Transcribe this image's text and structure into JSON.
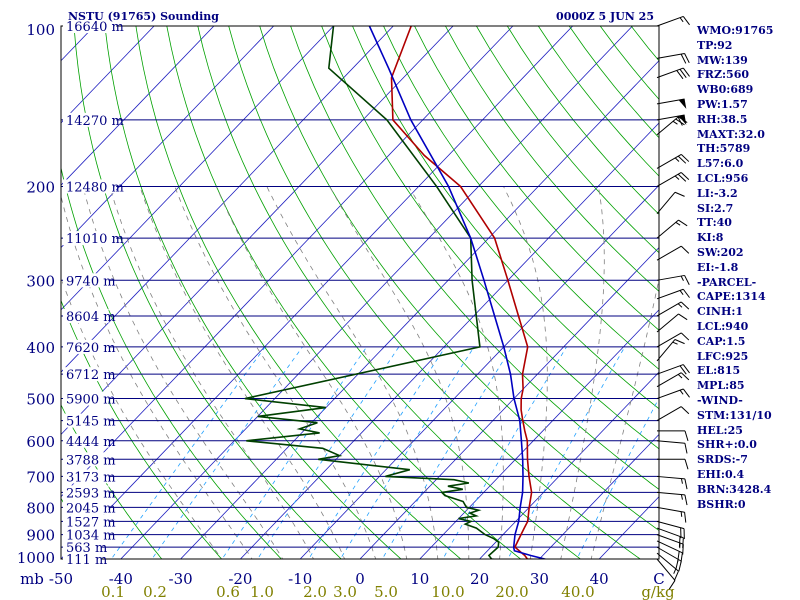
{
  "header": {
    "station_title": "NSTU (91765) Sounding",
    "valid_time": "0000Z  5 JUN 25"
  },
  "indices": [
    "WMO:91765",
    "TP:92",
    "MW:139",
    "FRZ:560",
    "WB0:689",
    "PW:1.57",
    "RH:38.5",
    "MAXT:32.0",
    "TH:5789",
    "L57:6.0",
    "LCL:956",
    "LI:-3.2",
    "SI:2.7",
    "TT:40",
    "KI:8",
    "SW:202",
    "EI:-1.8",
    "-PARCEL-",
    "CAPE:1314",
    "CINH:1",
    "LCL:940",
    "CAP:1.5",
    "LFC:925",
    "EL:815",
    "MPL:85",
    "-WIND-",
    "STM:131/10",
    "HEL:25",
    "SHR+:0.0",
    "SRDS:-7",
    "EHI:0.4",
    "BRN:3428.4",
    "BSHR:0"
  ],
  "colors": {
    "isobar": "#000080",
    "skewed_isotherm": "#2020c0",
    "dry_adiabat": "#00a000",
    "moist_adiabat": "#808080",
    "mixing_ratio": "#20a0ff",
    "temperature": "#b00000",
    "dewpoint": "#004000",
    "parcel": "#0000c0",
    "label_text": "#000080",
    "mixing_ratio_label": "#808000",
    "wind_barb": "#000000"
  },
  "chart_data": {
    "type": "line",
    "chart_kind": "skew-T log-P sounding",
    "y_axis": {
      "scale": "log",
      "unit": "hPa",
      "range": [
        1000,
        100
      ],
      "pressure_labels": [
        "100",
        "200",
        "300",
        "400",
        "500",
        "600",
        "700",
        "800",
        "900",
        "1000"
      ]
    },
    "x_axis": {
      "unit": "°C (skewed)",
      "range": [
        -50,
        50
      ],
      "bottom_labels": [
        "mb",
        "-50",
        "-40",
        "-30",
        "-20",
        "-10",
        "0",
        "10",
        "20",
        "30",
        "40",
        "C"
      ]
    },
    "height_labels": [
      {
        "p": 100,
        "text": "16640 m"
      },
      {
        "p": 150,
        "text": "14270 m"
      },
      {
        "p": 200,
        "text": "12480 m"
      },
      {
        "p": 250,
        "text": "11010 m"
      },
      {
        "p": 300,
        "text": "9740 m"
      },
      {
        "p": 350,
        "text": "8604 m"
      },
      {
        "p": 400,
        "text": "7620 m"
      },
      {
        "p": 450,
        "text": "6712 m"
      },
      {
        "p": 500,
        "text": "5900 m"
      },
      {
        "p": 550,
        "text": "5145 m"
      },
      {
        "p": 600,
        "text": "4444 m"
      },
      {
        "p": 650,
        "text": "3788 m"
      },
      {
        "p": 700,
        "text": "3173 m"
      },
      {
        "p": 750,
        "text": "2593 m"
      },
      {
        "p": 800,
        "text": "2045 m"
      },
      {
        "p": 850,
        "text": "1527 m"
      },
      {
        "p": 900,
        "text": "1034 m"
      },
      {
        "p": 950,
        "text": "563 m"
      },
      {
        "p": 1000,
        "text": "111 m"
      }
    ],
    "mixing_ratio_labels": [
      "0.1",
      "0.2",
      "0.6",
      "1.0",
      "2.0",
      "3.0",
      "5.0",
      "10.0",
      "20.0",
      "40.0",
      "g/kg"
    ],
    "series": [
      {
        "key": "temperature",
        "points": [
          [
            1004,
            31.6
          ],
          [
            1000,
            28
          ],
          [
            985,
            27
          ],
          [
            950,
            24
          ],
          [
            925,
            23.5
          ],
          [
            900,
            23
          ],
          [
            875,
            22.5
          ],
          [
            850,
            22
          ],
          [
            800,
            20
          ],
          [
            750,
            18
          ],
          [
            700,
            15
          ],
          [
            650,
            12
          ],
          [
            600,
            9
          ],
          [
            575,
            7
          ],
          [
            550,
            5
          ],
          [
            525,
            3
          ],
          [
            500,
            1.2
          ],
          [
            480,
            0
          ],
          [
            450,
            -2.5
          ],
          [
            400,
            -6
          ],
          [
            350,
            -12.5
          ],
          [
            300,
            -20
          ],
          [
            250,
            -29
          ],
          [
            200,
            -43
          ],
          [
            175,
            -54
          ],
          [
            150,
            -65
          ],
          [
            125,
            -72
          ],
          [
            100,
            -77
          ]
        ]
      },
      {
        "key": "dewpoint",
        "points": [
          [
            1004,
            23.5
          ],
          [
            1000,
            22
          ],
          [
            985,
            21
          ],
          [
            950,
            21.2
          ],
          [
            930,
            20.5
          ],
          [
            915,
            19
          ],
          [
            900,
            17
          ],
          [
            890,
            16
          ],
          [
            875,
            14.5
          ],
          [
            860,
            12
          ],
          [
            850,
            12.5
          ],
          [
            840,
            10
          ],
          [
            830,
            12.5
          ],
          [
            820,
            11
          ],
          [
            810,
            12
          ],
          [
            800,
            9.5
          ],
          [
            780,
            8
          ],
          [
            760,
            4
          ],
          [
            750,
            3
          ],
          [
            740,
            6
          ],
          [
            730,
            3
          ],
          [
            720,
            6
          ],
          [
            710,
            3
          ],
          [
            700,
            -9
          ],
          [
            680,
            -6
          ],
          [
            650,
            -23
          ],
          [
            640,
            -20
          ],
          [
            620,
            -24
          ],
          [
            600,
            -38
          ],
          [
            580,
            -27
          ],
          [
            570,
            -31
          ],
          [
            555,
            -29
          ],
          [
            540,
            -40
          ],
          [
            520,
            -30
          ],
          [
            500,
            -45
          ],
          [
            400,
            -14
          ],
          [
            300,
            -26
          ],
          [
            250,
            -33
          ],
          [
            200,
            -47
          ],
          [
            150,
            -66
          ],
          [
            120,
            -84
          ],
          [
            100,
            -90
          ]
        ]
      },
      {
        "key": "parcel",
        "points": [
          [
            1004,
            31.6
          ],
          [
            985,
            28
          ],
          [
            965,
            24.5
          ],
          [
            950,
            23.8
          ],
          [
            900,
            22
          ],
          [
            850,
            20.5
          ],
          [
            800,
            18.5
          ],
          [
            750,
            16.5
          ],
          [
            700,
            14
          ],
          [
            650,
            11.2
          ],
          [
            600,
            8
          ],
          [
            550,
            4.5
          ],
          [
            500,
            0
          ],
          [
            450,
            -4.5
          ],
          [
            400,
            -10
          ],
          [
            350,
            -16.5
          ],
          [
            300,
            -24
          ],
          [
            250,
            -33
          ],
          [
            200,
            -45
          ],
          [
            150,
            -62
          ],
          [
            120,
            -74
          ],
          [
            100,
            -84
          ]
        ]
      }
    ],
    "wind_barbs": [
      {
        "p": 1000,
        "dir": 140,
        "spd": 10
      },
      {
        "p": 975,
        "dir": 130,
        "spd": 15
      },
      {
        "p": 950,
        "dir": 120,
        "spd": 20
      },
      {
        "p": 925,
        "dir": 115,
        "spd": 20
      },
      {
        "p": 900,
        "dir": 110,
        "spd": 15
      },
      {
        "p": 875,
        "dir": 110,
        "spd": 20
      },
      {
        "p": 850,
        "dir": 105,
        "spd": 20
      },
      {
        "p": 800,
        "dir": 100,
        "spd": 15
      },
      {
        "p": 750,
        "dir": 95,
        "spd": 15
      },
      {
        "p": 700,
        "dir": 95,
        "spd": 15
      },
      {
        "p": 650,
        "dir": 90,
        "spd": 10
      },
      {
        "p": 600,
        "dir": 95,
        "spd": 10
      },
      {
        "p": 575,
        "dir": 90,
        "spd": 10
      },
      {
        "p": 550,
        "dir": 60,
        "spd": 10
      },
      {
        "p": 500,
        "dir": 70,
        "spd": 15
      },
      {
        "p": 475,
        "dir": 60,
        "spd": 15
      },
      {
        "p": 450,
        "dir": 70,
        "spd": 20
      },
      {
        "p": 425,
        "dir": 40,
        "spd": 15
      },
      {
        "p": 400,
        "dir": 60,
        "spd": 10
      },
      {
        "p": 375,
        "dir": 50,
        "spd": 10
      },
      {
        "p": 350,
        "dir": 60,
        "spd": 15
      },
      {
        "p": 325,
        "dir": 70,
        "spd": 15
      },
      {
        "p": 300,
        "dir": 80,
        "spd": 15
      },
      {
        "p": 275,
        "dir": 60,
        "spd": 10
      },
      {
        "p": 250,
        "dir": 50,
        "spd": 15
      },
      {
        "p": 225,
        "dir": 40,
        "spd": 10
      },
      {
        "p": 200,
        "dir": 60,
        "spd": 25
      },
      {
        "p": 185,
        "dir": 60,
        "spd": 25
      },
      {
        "p": 160,
        "dir": 50,
        "spd": 25
      },
      {
        "p": 150,
        "dir": 80,
        "spd": 60
      },
      {
        "p": 140,
        "dir": 80,
        "spd": 50
      },
      {
        "p": 125,
        "dir": 70,
        "spd": 30
      },
      {
        "p": 115,
        "dir": 80,
        "spd": 20
      },
      {
        "p": 100,
        "dir": 70,
        "spd": 15
      }
    ]
  }
}
